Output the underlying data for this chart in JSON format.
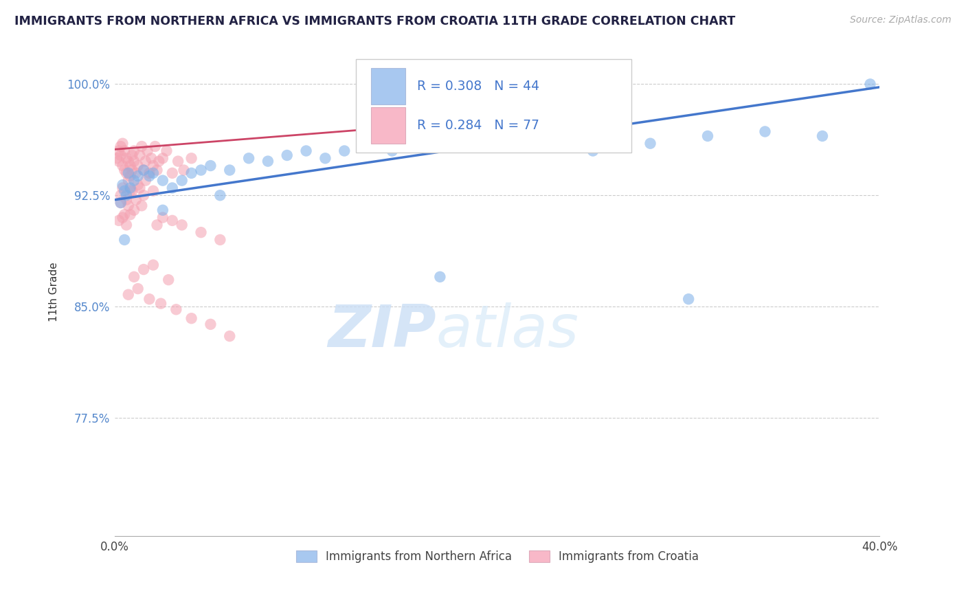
{
  "title": "IMMIGRANTS FROM NORTHERN AFRICA VS IMMIGRANTS FROM CROATIA 11TH GRADE CORRELATION CHART",
  "source": "Source: ZipAtlas.com",
  "ylabel": "11th Grade",
  "legend_blue_label": "Immigrants from Northern Africa",
  "legend_pink_label": "Immigrants from Croatia",
  "legend_blue_R": "R = 0.308",
  "legend_blue_N": "N = 44",
  "legend_pink_R": "R = 0.284",
  "legend_pink_N": "N = 77",
  "blue_color": "#7aaee8",
  "pink_color": "#f4a0b0",
  "blue_line_color": "#4477cc",
  "pink_line_color": "#cc4466",
  "blue_legend_fill": "#a8c8f0",
  "pink_legend_fill": "#f8b8c8",
  "ytick_color": "#5588cc",
  "xlim": [
    0.0,
    0.4
  ],
  "ylim": [
    0.695,
    1.025
  ],
  "yticks": [
    0.775,
    0.85,
    0.925,
    1.0
  ],
  "ytick_labels": [
    "77.5%",
    "85.0%",
    "92.5%",
    "100.0%"
  ],
  "blue_scatter_x": [
    0.004,
    0.007,
    0.003,
    0.01,
    0.005,
    0.012,
    0.008,
    0.015,
    0.018,
    0.006,
    0.02,
    0.025,
    0.03,
    0.035,
    0.04,
    0.045,
    0.05,
    0.06,
    0.07,
    0.08,
    0.09,
    0.1,
    0.11,
    0.12,
    0.13,
    0.145,
    0.16,
    0.175,
    0.19,
    0.21,
    0.23,
    0.255,
    0.28,
    0.31,
    0.34,
    0.37,
    0.025,
    0.055,
    0.17,
    0.3,
    0.2,
    0.25,
    0.005,
    0.395
  ],
  "blue_scatter_y": [
    0.932,
    0.94,
    0.92,
    0.935,
    0.928,
    0.938,
    0.93,
    0.942,
    0.938,
    0.925,
    0.94,
    0.935,
    0.93,
    0.935,
    0.94,
    0.942,
    0.945,
    0.942,
    0.95,
    0.948,
    0.952,
    0.955,
    0.95,
    0.955,
    0.958,
    0.955,
    0.958,
    0.96,
    0.962,
    0.96,
    0.965,
    0.962,
    0.96,
    0.965,
    0.968,
    0.965,
    0.915,
    0.925,
    0.87,
    0.855,
    0.958,
    0.955,
    0.895,
    1.0
  ],
  "pink_scatter_x": [
    0.001,
    0.002,
    0.002,
    0.003,
    0.003,
    0.004,
    0.004,
    0.005,
    0.005,
    0.006,
    0.006,
    0.007,
    0.007,
    0.008,
    0.008,
    0.009,
    0.009,
    0.01,
    0.01,
    0.011,
    0.012,
    0.013,
    0.014,
    0.015,
    0.016,
    0.017,
    0.018,
    0.019,
    0.02,
    0.021,
    0.022,
    0.023,
    0.025,
    0.027,
    0.03,
    0.033,
    0.036,
    0.04,
    0.004,
    0.008,
    0.012,
    0.016,
    0.02,
    0.003,
    0.006,
    0.009,
    0.013,
    0.003,
    0.007,
    0.011,
    0.015,
    0.005,
    0.01,
    0.014,
    0.002,
    0.004,
    0.006,
    0.008,
    0.022,
    0.025,
    0.03,
    0.035,
    0.045,
    0.055,
    0.02,
    0.015,
    0.01,
    0.028,
    0.012,
    0.007,
    0.018,
    0.024,
    0.032,
    0.04,
    0.05,
    0.06,
    0.22
  ],
  "pink_scatter_y": [
    0.95,
    0.948,
    0.955,
    0.952,
    0.958,
    0.945,
    0.96,
    0.955,
    0.942,
    0.95,
    0.94,
    0.948,
    0.935,
    0.945,
    0.938,
    0.952,
    0.942,
    0.948,
    0.955,
    0.94,
    0.945,
    0.952,
    0.958,
    0.942,
    0.948,
    0.955,
    0.94,
    0.95,
    0.945,
    0.958,
    0.942,
    0.948,
    0.95,
    0.955,
    0.94,
    0.948,
    0.942,
    0.95,
    0.93,
    0.928,
    0.932,
    0.935,
    0.928,
    0.925,
    0.922,
    0.928,
    0.93,
    0.92,
    0.918,
    0.922,
    0.925,
    0.912,
    0.915,
    0.918,
    0.908,
    0.91,
    0.905,
    0.912,
    0.905,
    0.91,
    0.908,
    0.905,
    0.9,
    0.895,
    0.878,
    0.875,
    0.87,
    0.868,
    0.862,
    0.858,
    0.855,
    0.852,
    0.848,
    0.842,
    0.838,
    0.83,
    0.968
  ],
  "blue_line_x": [
    0.0,
    0.4
  ],
  "blue_line_y": [
    0.922,
    0.998
  ],
  "pink_line_x": [
    0.0,
    0.235
  ],
  "pink_line_y": [
    0.956,
    0.98
  ]
}
